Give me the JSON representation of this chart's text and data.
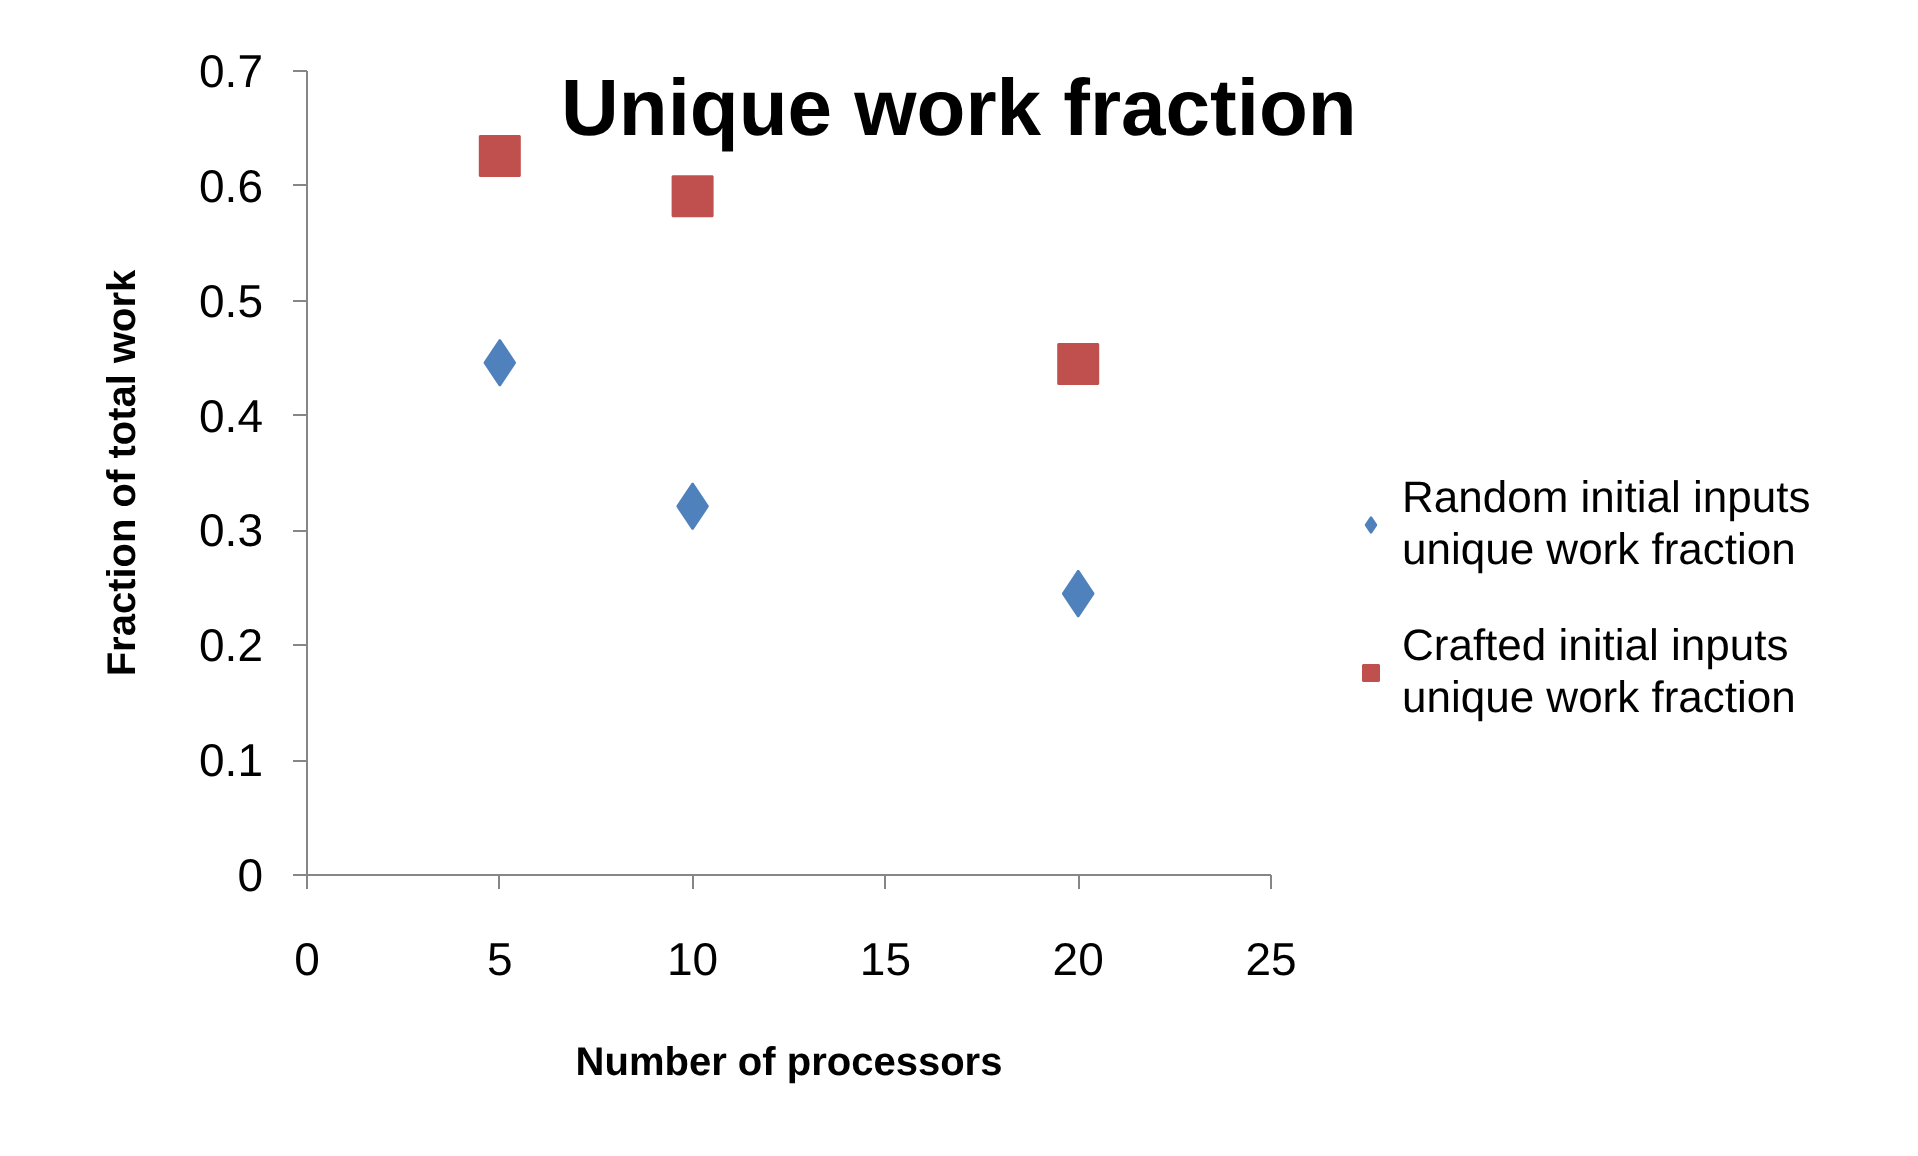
{
  "chart_data": {
    "type": "scatter",
    "title": "Unique work fraction",
    "xlabel": "Number of processors",
    "ylabel": "Fraction of total work",
    "x": [
      5,
      10,
      20
    ],
    "xlim": [
      0,
      25
    ],
    "xticks": [
      0,
      5,
      10,
      15,
      20,
      25
    ],
    "ylim": [
      0,
      0.7
    ],
    "yticks": [
      0,
      0.1,
      0.2,
      0.3,
      0.4,
      0.5,
      0.6,
      0.7
    ],
    "legend": "right",
    "series": [
      {
        "name": "Random initial inputs unique work fraction",
        "color": "#4f81bd",
        "marker": "diamond",
        "values": [
          0.446,
          0.321,
          0.245
        ]
      },
      {
        "name": "Crafted initial inputs unique work fraction",
        "color": "#c0504d",
        "marker": "square",
        "values": [
          0.626,
          0.591,
          0.445
        ]
      }
    ]
  }
}
